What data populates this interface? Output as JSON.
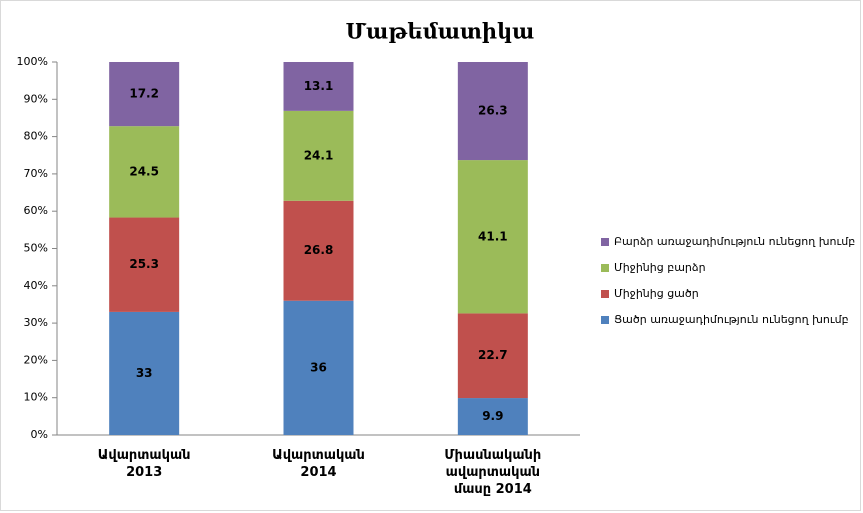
{
  "chart_data": {
    "type": "bar",
    "stacked": true,
    "title": "Մաթեմատիկա",
    "categories": [
      "Ավարտական 2013",
      "Ավարտական 2014",
      "Միասնականի ավարտական մասը 2014"
    ],
    "series": [
      {
        "name": "Ցածր առաջադիմություն ունեցող խումբ",
        "color": "#4f81bd",
        "values": [
          33,
          36,
          9.9
        ]
      },
      {
        "name": "Միջինից ցածր",
        "color": "#c0504d",
        "values": [
          25.3,
          26.8,
          22.7
        ]
      },
      {
        "name": "Միջինից բարձր",
        "color": "#9bbb59",
        "values": [
          24.5,
          24.1,
          41.1
        ]
      },
      {
        "name": "Բարձր առաջադիմություն ունեցող խումբ",
        "color": "#8064a2",
        "values": [
          17.2,
          13.1,
          26.3
        ]
      }
    ],
    "ylim": [
      0,
      100
    ],
    "yticks": [
      {
        "value": 0,
        "label": "0%"
      },
      {
        "value": 10,
        "label": "10%"
      },
      {
        "value": 20,
        "label": "20%"
      },
      {
        "value": 30,
        "label": "30%"
      },
      {
        "value": 40,
        "label": "40%"
      },
      {
        "value": 50,
        "label": "50%"
      },
      {
        "value": 60,
        "label": "60%"
      },
      {
        "value": 70,
        "label": "70%"
      },
      {
        "value": 80,
        "label": "80%"
      },
      {
        "value": 90,
        "label": "90%"
      },
      {
        "value": 100,
        "label": "100%"
      }
    ],
    "legend": "right"
  }
}
